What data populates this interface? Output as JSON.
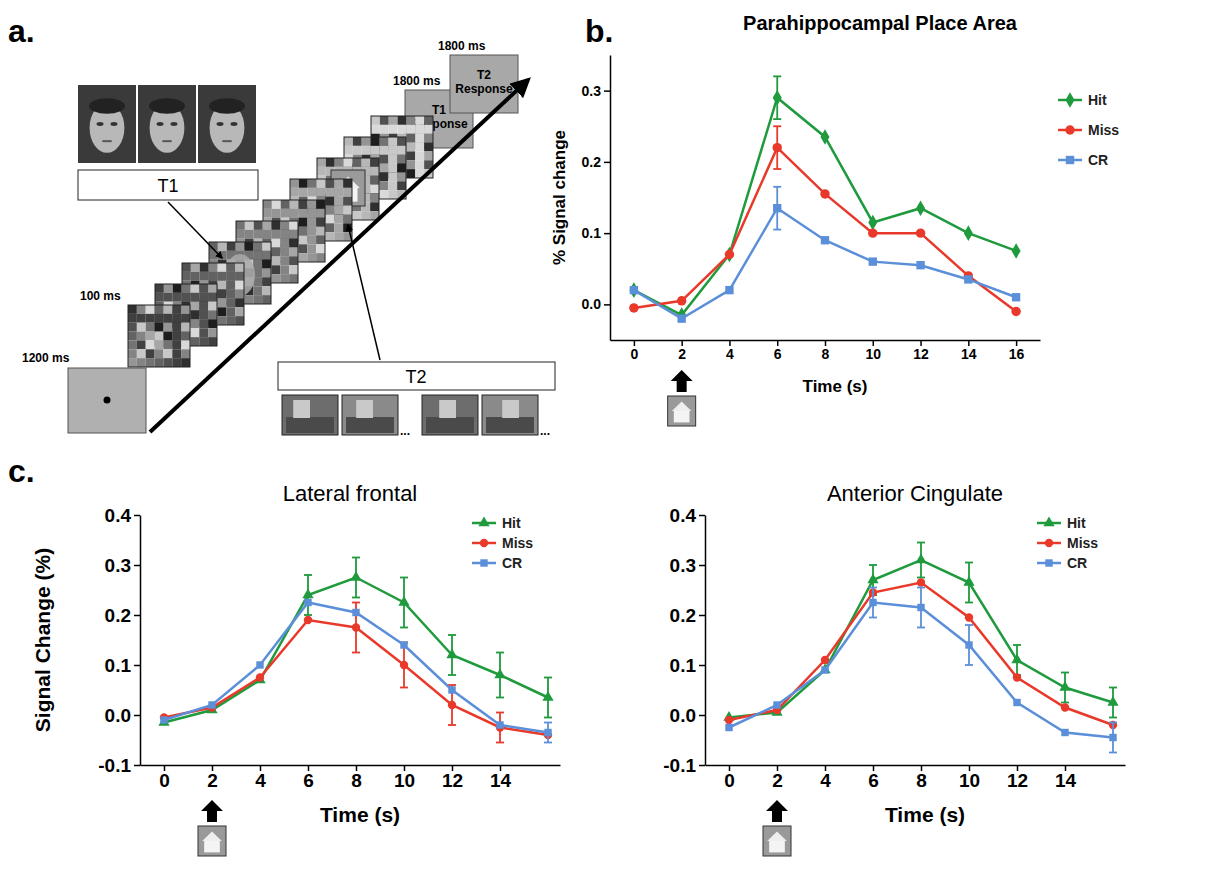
{
  "figure": {
    "panel_labels": [
      "a.",
      "b.",
      "c."
    ]
  },
  "diagram": {
    "fixation_duration": "1200 ms",
    "frame_duration": "100 ms",
    "response_durations": [
      "1800 ms",
      "1800 ms"
    ],
    "responses": [
      "T1 Response",
      "T2 Response"
    ],
    "targets": [
      "T1",
      "T2"
    ],
    "ellipses": [
      "...",
      "..."
    ]
  },
  "chart_data": [
    {
      "type": "line",
      "title": "Parahippocampal Place Area",
      "xlabel": "Time (s)",
      "ylabel": "% Signal change",
      "x": [
        0,
        2,
        4,
        6,
        8,
        10,
        12,
        14,
        16
      ],
      "xlim": [
        -1,
        17
      ],
      "xticks": [
        0,
        2,
        4,
        6,
        8,
        10,
        12,
        14,
        16
      ],
      "ylim": [
        -0.05,
        0.35
      ],
      "yticks": [
        {
          "value": 0,
          "label": "0.0"
        },
        {
          "value": 0.1,
          "label": "0.1"
        },
        {
          "value": 0.2,
          "label": "0.2"
        },
        {
          "value": 0.3,
          "label": "0.3"
        }
      ],
      "stimulus_onset": 2,
      "legend": "right",
      "series": [
        {
          "name": "Hit",
          "color": "#1f9a3c",
          "marker": "diamond",
          "values": [
            0.02,
            -0.015,
            0.07,
            0.29,
            0.235,
            0.115,
            0.135,
            0.1,
            0.075
          ],
          "errors": [
            null,
            null,
            null,
            0.03,
            null,
            null,
            null,
            null,
            null
          ]
        },
        {
          "name": "Miss",
          "color": "#e8392b",
          "marker": "circle",
          "values": [
            -0.005,
            0.005,
            0.07,
            0.22,
            0.155,
            0.1,
            0.1,
            0.04,
            -0.01
          ],
          "errors": [
            null,
            null,
            null,
            0.03,
            null,
            null,
            null,
            null,
            null
          ]
        },
        {
          "name": "CR",
          "color": "#5b8fd9",
          "marker": "square",
          "values": [
            0.02,
            -0.02,
            0.02,
            0.135,
            0.09,
            0.06,
            0.055,
            0.035,
            0.01
          ],
          "errors": [
            null,
            null,
            null,
            0.03,
            null,
            null,
            null,
            null,
            null
          ]
        }
      ]
    },
    {
      "type": "line",
      "title": "Lateral frontal",
      "xlabel": "Time (s)",
      "ylabel": "Signal Change (%)",
      "x": [
        0,
        2,
        4,
        6,
        8,
        10,
        12,
        14,
        16
      ],
      "xlim": [
        -1,
        16.5
      ],
      "xticks": [
        0,
        2,
        4,
        6,
        8,
        10,
        12,
        14
      ],
      "ylim": [
        -0.1,
        0.4
      ],
      "yticks": [
        {
          "value": -0.1,
          "label": "-0.1"
        },
        {
          "value": 0,
          "label": "0.0"
        },
        {
          "value": 0.1,
          "label": "0.1"
        },
        {
          "value": 0.2,
          "label": "0.2"
        },
        {
          "value": 0.3,
          "label": "0.3"
        },
        {
          "value": 0.4,
          "label": "0.4"
        }
      ],
      "stimulus_onset": 2,
      "legend": "top-right",
      "series": [
        {
          "name": "Hit",
          "color": "#1f9a3c",
          "marker": "triangle",
          "values": [
            -0.015,
            0.01,
            0.07,
            0.24,
            0.275,
            0.225,
            0.12,
            0.08,
            0.035
          ],
          "errors": [
            null,
            null,
            null,
            0.04,
            0.04,
            0.05,
            0.04,
            0.045,
            0.04
          ]
        },
        {
          "name": "Miss",
          "color": "#e8392b",
          "marker": "circle",
          "values": [
            -0.005,
            0.015,
            0.075,
            0.19,
            0.175,
            0.1,
            0.02,
            -0.025,
            -0.04
          ],
          "errors": [
            null,
            null,
            null,
            null,
            0.05,
            0.045,
            0.04,
            0.03,
            null
          ]
        },
        {
          "name": "CR",
          "color": "#5b8fd9",
          "marker": "square",
          "values": [
            -0.01,
            0.02,
            0.1,
            0.225,
            0.205,
            0.14,
            0.05,
            -0.02,
            -0.035
          ],
          "errors": [
            null,
            null,
            null,
            null,
            null,
            null,
            null,
            null,
            0.02
          ]
        }
      ]
    },
    {
      "type": "line",
      "title": "Anterior Cingulate",
      "xlabel": "Time (s)",
      "x": [
        0,
        2,
        4,
        6,
        8,
        10,
        12,
        14,
        16
      ],
      "xlim": [
        -1,
        16.5
      ],
      "xticks": [
        0,
        2,
        4,
        6,
        8,
        10,
        12,
        14
      ],
      "ylim": [
        -0.1,
        0.4
      ],
      "yticks": [
        {
          "value": -0.1,
          "label": "-0.1"
        },
        {
          "value": 0,
          "label": "0.0"
        },
        {
          "value": 0.1,
          "label": "0.1"
        },
        {
          "value": 0.2,
          "label": "0.2"
        },
        {
          "value": 0.3,
          "label": "0.3"
        },
        {
          "value": 0.4,
          "label": "0.4"
        }
      ],
      "stimulus_onset": 2,
      "legend": "top-right",
      "series": [
        {
          "name": "Hit",
          "color": "#1f9a3c",
          "marker": "triangle",
          "values": [
            -0.005,
            0.005,
            0.09,
            0.27,
            0.31,
            0.265,
            0.11,
            0.055,
            0.025
          ],
          "errors": [
            null,
            null,
            null,
            0.03,
            0.035,
            0.04,
            0.03,
            0.03,
            0.03
          ]
        },
        {
          "name": "Miss",
          "color": "#e8392b",
          "marker": "circle",
          "values": [
            -0.01,
            0.01,
            0.11,
            0.245,
            0.265,
            0.195,
            0.075,
            0.015,
            -0.02
          ],
          "errors": [
            null,
            null,
            null,
            null,
            null,
            null,
            null,
            null,
            null
          ]
        },
        {
          "name": "CR",
          "color": "#5b8fd9",
          "marker": "square",
          "values": [
            -0.025,
            0.02,
            0.09,
            0.225,
            0.215,
            0.14,
            0.025,
            -0.035,
            -0.045
          ],
          "errors": [
            null,
            null,
            null,
            0.03,
            0.04,
            0.04,
            null,
            null,
            0.03
          ]
        }
      ]
    }
  ]
}
